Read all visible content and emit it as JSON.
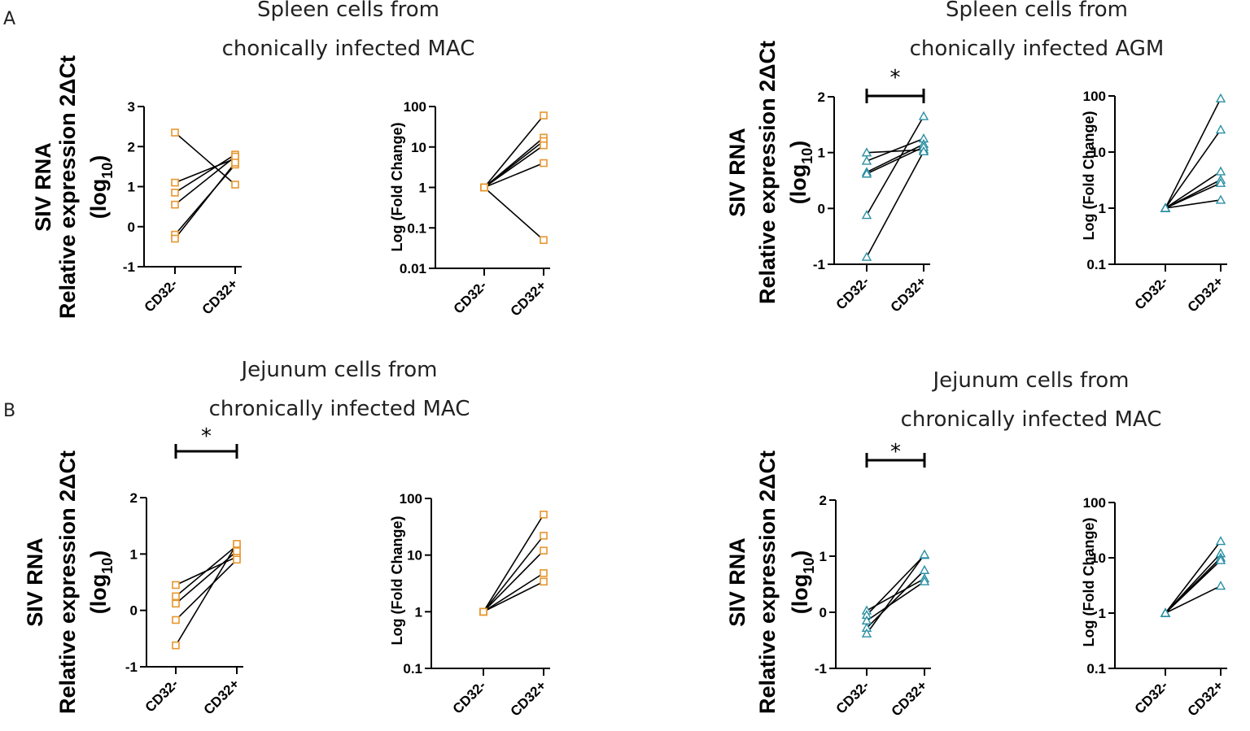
{
  "panel_labels": [
    "A",
    "B"
  ],
  "chart_data": [
    {
      "id": "A_spleen_MAC_rel",
      "type": "line",
      "title_line1": "Spleen cells from",
      "title_line2": "chonically infected MAC",
      "ylabel_line1": "SIV RNA",
      "ylabel_line2": "Relative expression 2ΔCt",
      "ylabel_line3": "(log10)",
      "scale": "linear",
      "ylim": [
        -1,
        3
      ],
      "yticks": [
        -1,
        0,
        1,
        2,
        3
      ],
      "ytick_labels": [
        "-1",
        "0",
        "1",
        "2",
        "3"
      ],
      "categories": [
        "CD32-",
        "CD32+"
      ],
      "marker": "square",
      "color": "#E8962E",
      "significance": "",
      "series": [
        [
          2.35,
          1.05
        ],
        [
          1.1,
          1.7
        ],
        [
          0.85,
          1.8
        ],
        [
          0.55,
          1.75
        ],
        [
          -0.2,
          1.55
        ],
        [
          -0.3,
          1.6
        ]
      ]
    },
    {
      "id": "A_spleen_MAC_fold",
      "type": "line",
      "ylabel_line1": "Log (Fold Change)",
      "scale": "log",
      "ylim": [
        0.01,
        100
      ],
      "yticks": [
        0.01,
        0.1,
        1,
        10,
        100
      ],
      "ytick_labels": [
        "0.01",
        "0.1",
        "1",
        "10",
        "100"
      ],
      "categories": [
        "CD32-",
        "CD32+"
      ],
      "marker": "square",
      "color": "#E8962E",
      "significance": "",
      "series": [
        [
          1,
          60
        ],
        [
          1,
          17
        ],
        [
          1,
          14
        ],
        [
          1,
          11
        ],
        [
          1,
          4
        ],
        [
          1,
          0.05
        ]
      ]
    },
    {
      "id": "A_spleen_AGM_rel",
      "type": "line",
      "title_line1": "Spleen cells from",
      "title_line2": "chonically infected AGM",
      "ylabel_line1": "SIV RNA",
      "ylabel_line2": "Relative expression 2ΔCt",
      "ylabel_line3": "(log10)",
      "scale": "linear",
      "ylim": [
        -1,
        2
      ],
      "yticks": [
        -1,
        0,
        1,
        2
      ],
      "ytick_labels": [
        "-1",
        "0",
        "1",
        "2"
      ],
      "categories": [
        "CD32-",
        "CD32+"
      ],
      "marker": "triangle",
      "color": "#2A8FA3",
      "significance": "*",
      "series": [
        [
          1.0,
          1.05
        ],
        [
          0.85,
          1.25
        ],
        [
          0.65,
          1.15
        ],
        [
          0.62,
          1.1
        ],
        [
          -0.12,
          1.65
        ],
        [
          -0.87,
          1.02
        ]
      ]
    },
    {
      "id": "A_spleen_AGM_fold",
      "type": "line",
      "ylabel_line1": "Log (Fold Change)",
      "scale": "log",
      "ylim": [
        0.1,
        100
      ],
      "yticks": [
        0.1,
        1,
        10,
        100
      ],
      "ytick_labels": [
        "0.1",
        "1",
        "10",
        "100"
      ],
      "categories": [
        "CD32-",
        "CD32+"
      ],
      "marker": "triangle",
      "color": "#2A8FA3",
      "significance": "",
      "series": [
        [
          1,
          90
        ],
        [
          1,
          25
        ],
        [
          1,
          4.5
        ],
        [
          1,
          3.2
        ],
        [
          1,
          2.8
        ],
        [
          1,
          1.4
        ]
      ]
    },
    {
      "id": "B_jejunum_MAC_rel",
      "type": "line",
      "title_line1": "Jejunum cells from",
      "title_line2": "chronically infected MAC",
      "ylabel_line1": "SIV RNA",
      "ylabel_line2": "Relative expression 2ΔCt",
      "ylabel_line3": "(log10)",
      "scale": "linear",
      "ylim": [
        -1,
        2
      ],
      "yticks": [
        -1,
        0,
        1,
        2
      ],
      "ytick_labels": [
        "-1",
        "0",
        "1",
        "2"
      ],
      "categories": [
        "CD32-",
        "CD32+"
      ],
      "marker": "square",
      "color": "#E8962E",
      "significance": "*",
      "series": [
        [
          0.45,
          0.95
        ],
        [
          0.25,
          1.15
        ],
        [
          0.12,
          1.05
        ],
        [
          -0.17,
          0.9
        ],
        [
          -0.62,
          1.18
        ]
      ]
    },
    {
      "id": "B_jejunum_MAC_fold",
      "type": "line",
      "ylabel_line1": "Log (Fold Change)",
      "scale": "log",
      "ylim": [
        0.1,
        100
      ],
      "yticks": [
        0.1,
        1,
        10,
        100
      ],
      "ytick_labels": [
        "0.1",
        "1",
        "10",
        "100"
      ],
      "categories": [
        "CD32-",
        "CD32+"
      ],
      "marker": "square",
      "color": "#E8962E",
      "significance": "",
      "series": [
        [
          1,
          52
        ],
        [
          1,
          22
        ],
        [
          1,
          12
        ],
        [
          1,
          4.8
        ],
        [
          1,
          3.4
        ]
      ]
    },
    {
      "id": "B_jejunum_MAC2_rel",
      "type": "line",
      "title_line1": "Jejunum cells from",
      "title_line2": "chronically infected MAC",
      "ylabel_line1": "SIV RNA",
      "ylabel_line2": "Relative expression 2ΔCt",
      "ylabel_line3": "(log10)",
      "scale": "linear",
      "ylim": [
        -1,
        2
      ],
      "yticks": [
        -1,
        0,
        1,
        2
      ],
      "ytick_labels": [
        "-1",
        "0",
        "1",
        "2"
      ],
      "categories": [
        "CD32-",
        "CD32+"
      ],
      "marker": "triangle",
      "color": "#2A8FA3",
      "significance": "*",
      "series": [
        [
          0.03,
          0.6
        ],
        [
          -0.05,
          1.02
        ],
        [
          -0.15,
          0.55
        ],
        [
          -0.28,
          0.75
        ],
        [
          -0.38,
          1.03
        ]
      ]
    },
    {
      "id": "B_jejunum_MAC2_fold",
      "type": "line",
      "ylabel_line1": "Log (Fold Change)",
      "scale": "log",
      "ylim": [
        0.1,
        100
      ],
      "yticks": [
        0.1,
        1,
        10,
        100
      ],
      "ytick_labels": [
        "0.1",
        "1",
        "10",
        "100"
      ],
      "categories": [
        "CD32-",
        "CD32+"
      ],
      "marker": "triangle",
      "color": "#2A8FA3",
      "significance": "",
      "series": [
        [
          1,
          20
        ],
        [
          1,
          12
        ],
        [
          1,
          10
        ],
        [
          1,
          9
        ],
        [
          1,
          3.1
        ]
      ]
    }
  ]
}
